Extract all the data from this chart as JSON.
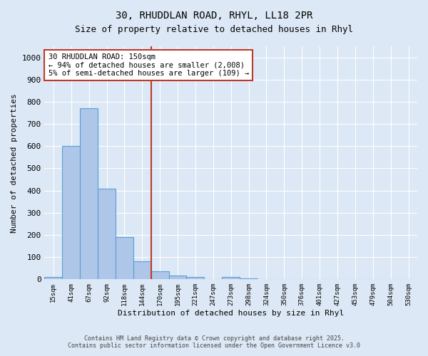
{
  "title_line1": "30, RHUDDLAN ROAD, RHYL, LL18 2PR",
  "title_line2": "Size of property relative to detached houses in Rhyl",
  "xlabel": "Distribution of detached houses by size in Rhyl",
  "ylabel": "Number of detached properties",
  "bar_categories": [
    "15sqm",
    "41sqm",
    "67sqm",
    "92sqm",
    "118sqm",
    "144sqm",
    "170sqm",
    "195sqm",
    "221sqm",
    "247sqm",
    "273sqm",
    "298sqm",
    "324sqm",
    "350sqm",
    "376sqm",
    "401sqm",
    "427sqm",
    "453sqm",
    "479sqm",
    "504sqm",
    "530sqm"
  ],
  "bar_values": [
    12,
    600,
    770,
    410,
    190,
    80,
    37,
    18,
    10,
    0,
    10,
    5,
    0,
    0,
    0,
    0,
    0,
    0,
    0,
    0,
    0
  ],
  "bar_color": "#aec6e8",
  "bar_edge_color": "#5a9fd4",
  "vline_index": 5.5,
  "vline_color": "#c0392b",
  "annotation_text": "30 RHUDDLAN ROAD: 150sqm\n← 94% of detached houses are smaller (2,008)\n5% of semi-detached houses are larger (109) →",
  "annotation_box_color": "white",
  "annotation_box_edge": "#c0392b",
  "ylim": [
    0,
    1050
  ],
  "yticks": [
    0,
    100,
    200,
    300,
    400,
    500,
    600,
    700,
    800,
    900,
    1000
  ],
  "background_color": "#dce8f5",
  "grid_color": "#ffffff",
  "footer_line1": "Contains HM Land Registry data © Crown copyright and database right 2025.",
  "footer_line2": "Contains public sector information licensed under the Open Government Licence v3.0"
}
